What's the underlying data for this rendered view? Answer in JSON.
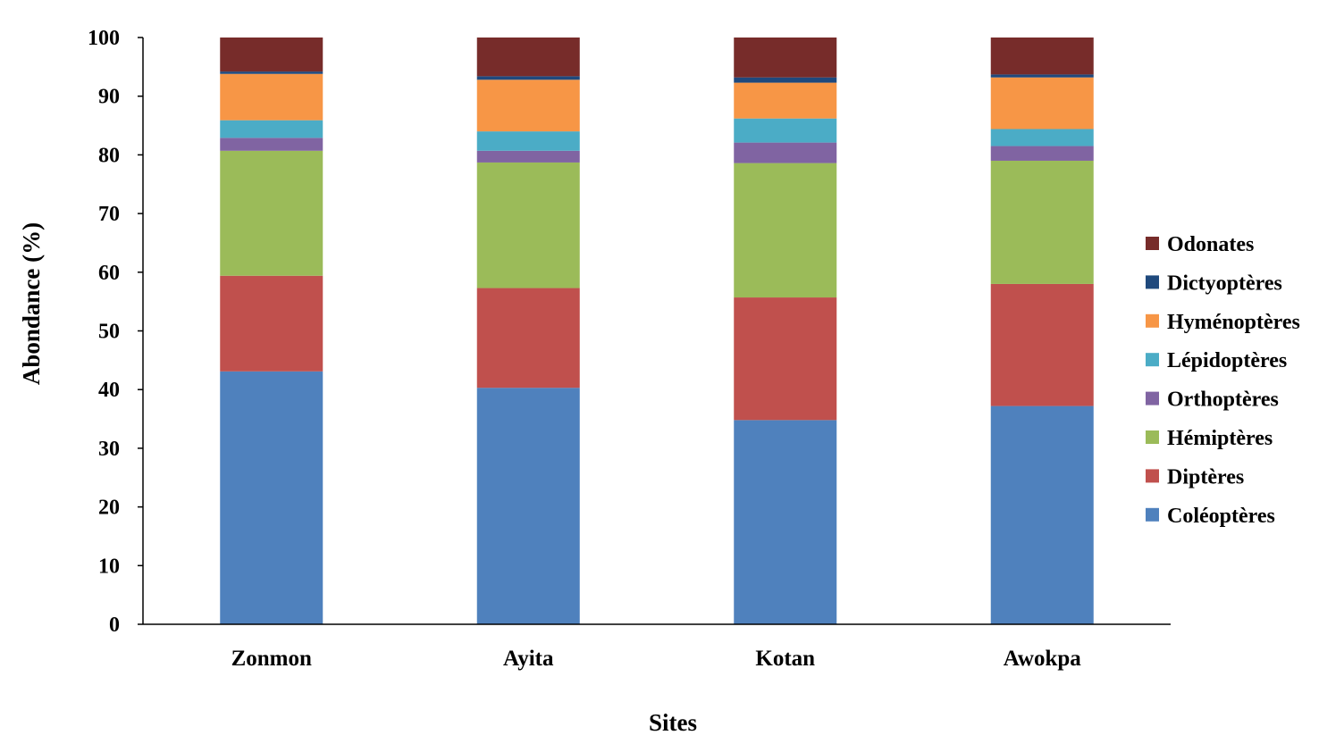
{
  "chart_data": {
    "type": "bar",
    "stacked": true,
    "percent_stacked": true,
    "categories": [
      "Zonmon",
      "Ayita",
      "Kotan",
      "Awokpa"
    ],
    "xlabel": "Sites",
    "ylabel": "Abondance (%)",
    "ylim": [
      0,
      100
    ],
    "yticks": [
      0,
      10,
      20,
      30,
      40,
      50,
      60,
      70,
      80,
      90,
      100
    ],
    "grid": false,
    "legend_position": "right",
    "series": [
      {
        "name": "Coléoptères",
        "color": "#4F81BD",
        "values": [
          43.1,
          40.3,
          34.8,
          37.2
        ]
      },
      {
        "name": "Diptères",
        "color": "#C0504D",
        "values": [
          16.3,
          17.0,
          20.9,
          20.8
        ]
      },
      {
        "name": "Hémiptères",
        "color": "#9BBB59",
        "values": [
          21.3,
          21.4,
          22.9,
          21.0
        ]
      },
      {
        "name": "Orthoptères",
        "color": "#8064A2",
        "values": [
          2.2,
          2.0,
          3.5,
          2.5
        ]
      },
      {
        "name": "Lépidoptères",
        "color": "#4BACC6",
        "values": [
          3.0,
          3.3,
          4.1,
          2.9
        ]
      },
      {
        "name": "Hyménoptères",
        "color": "#F79646",
        "values": [
          7.9,
          8.8,
          6.1,
          8.8
        ]
      },
      {
        "name": "Dictyoptères",
        "color": "#1F497D",
        "values": [
          0.4,
          0.6,
          0.9,
          0.5
        ]
      },
      {
        "name": "Odonates",
        "color": "#772C2A",
        "values": [
          5.8,
          6.6,
          6.8,
          6.3
        ]
      }
    ]
  }
}
